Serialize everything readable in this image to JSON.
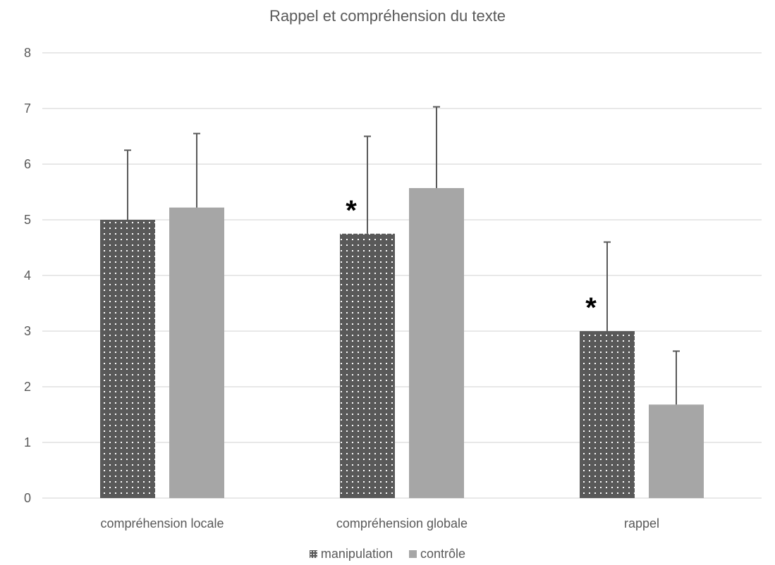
{
  "chart_data": {
    "type": "bar",
    "title": "Rappel et compréhension du texte",
    "xlabel": "",
    "ylabel": "",
    "ylim": [
      0,
      8
    ],
    "yticks": [
      0,
      1,
      2,
      3,
      4,
      5,
      6,
      7,
      8
    ],
    "grid": true,
    "legend_position": "bottom",
    "categories": [
      "compréhension locale",
      "compréhension globale",
      "rappel"
    ],
    "series": [
      {
        "name": "manipulation",
        "color": "#595959",
        "pattern": "dotted",
        "values": [
          5.0,
          4.75,
          3.0
        ],
        "error_plus": [
          1.25,
          1.75,
          1.6
        ]
      },
      {
        "name": "contrôle",
        "color": "#a6a6a6",
        "pattern": "solid",
        "values": [
          5.22,
          5.57,
          1.68
        ],
        "error_plus": [
          1.33,
          1.46,
          0.96
        ]
      }
    ],
    "annotations": [
      {
        "text": "*",
        "category": "compréhension globale",
        "series": "manipulation"
      },
      {
        "text": "*",
        "category": "rappel",
        "series": "manipulation"
      }
    ]
  }
}
